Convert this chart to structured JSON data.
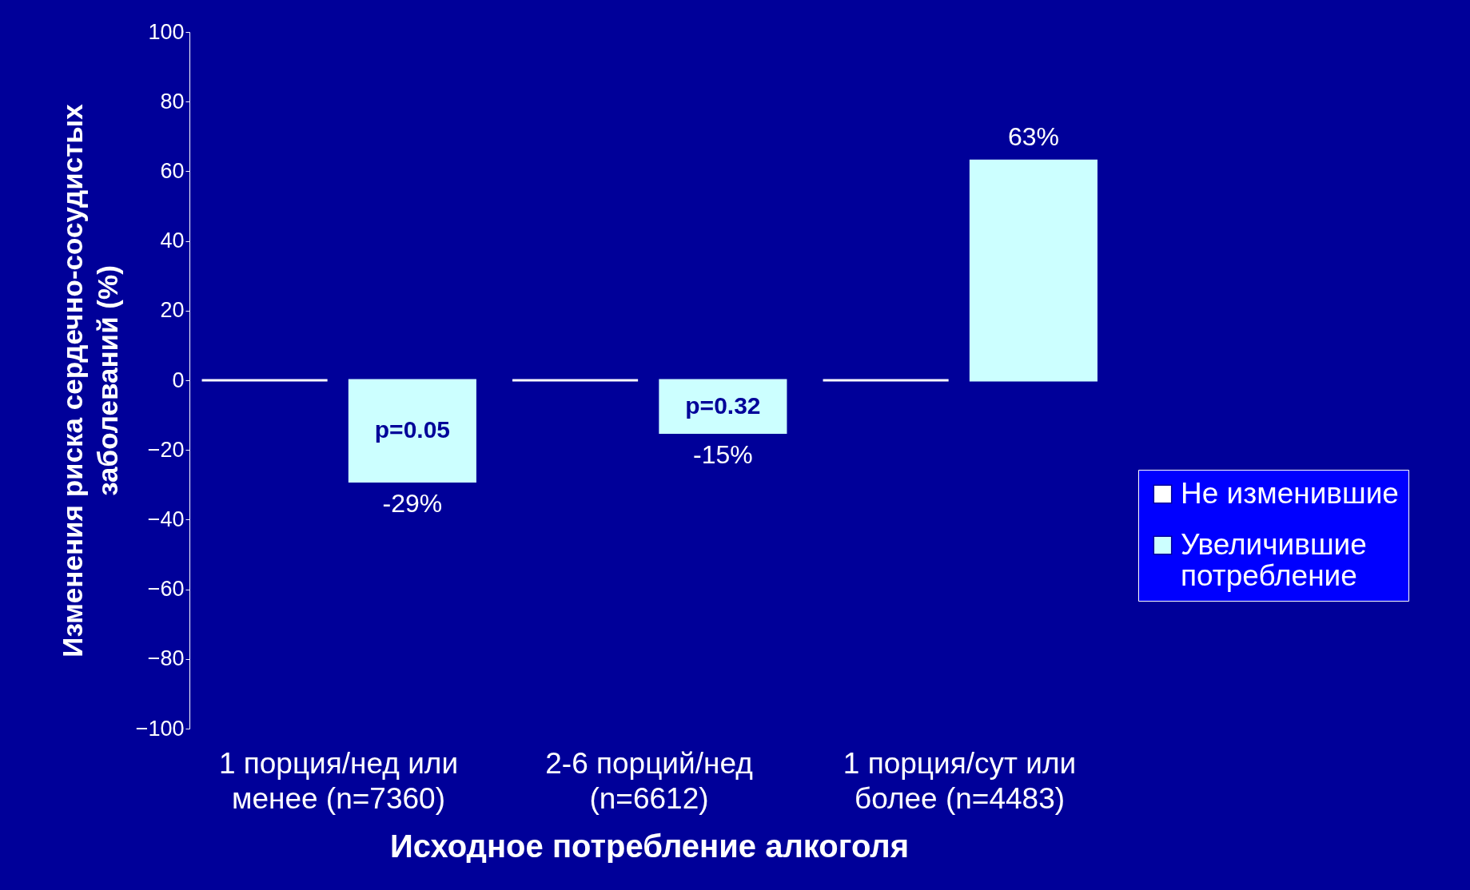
{
  "chart_data": {
    "type": "bar",
    "xlabel": "Исходное потребление алкоголя",
    "ylabel": "Изменения риска сердечно-сосудистых\nзаболеваний (%)",
    "categories": [
      "1 порция/нед или\nменее (n=7360)",
      "2-6 порций/нед\n(n=6612)",
      "1 порция/сут или\nболее (n=4483)"
    ],
    "series": [
      {
        "name": "Не изменившие",
        "color": "#ffffff",
        "values": [
          0,
          0,
          0
        ]
      },
      {
        "name": "Увеличившие\nпотребление",
        "color": "#ccffff",
        "values": [
          -29,
          -15,
          63
        ],
        "value_labels": [
          "-29%",
          "-15%",
          "63%"
        ]
      }
    ],
    "ylim": [
      -100,
      100
    ],
    "yticks": [
      -100,
      -80,
      -60,
      -40,
      -20,
      0,
      20,
      40,
      60,
      80,
      100
    ],
    "grid": false,
    "legend": "right",
    "annotations": [
      "p=0.05",
      "p=0.32"
    ]
  }
}
